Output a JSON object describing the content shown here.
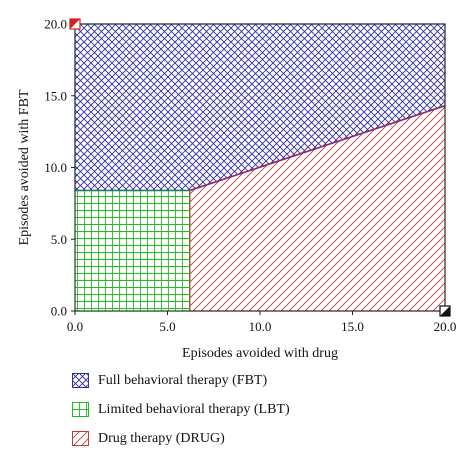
{
  "chart_data": {
    "type": "area",
    "title": "",
    "xlabel": "Episodes avoided with drug",
    "ylabel": "Episodes avoided with FBT",
    "xlim": [
      0,
      20
    ],
    "ylim": [
      0,
      20
    ],
    "x_ticks": [
      "0.0",
      "5.0",
      "10.0",
      "15.0",
      "20.0"
    ],
    "y_ticks": [
      "0.0",
      "5.0",
      "10.0",
      "15.0",
      "20.0"
    ],
    "grid": false,
    "legend_position": "bottom",
    "regions": [
      {
        "name": "Full behavioral therapy (FBT)",
        "pattern": "crosshatch",
        "color": "#2e2e9c",
        "polygon": [
          [
            0,
            8.4
          ],
          [
            6.2,
            8.4
          ],
          [
            20,
            14.3
          ],
          [
            20,
            20
          ],
          [
            0,
            20
          ]
        ]
      },
      {
        "name": "Limited behavioral therapy (LBT)",
        "pattern": "grid",
        "color": "#22bb22",
        "polygon": [
          [
            0,
            0
          ],
          [
            6.2,
            0
          ],
          [
            6.2,
            8.4
          ],
          [
            0,
            8.4
          ]
        ]
      },
      {
        "name": "Drug therapy (DRUG)",
        "pattern": "diagonal",
        "color": "#c23a3a",
        "polygon": [
          [
            6.2,
            0
          ],
          [
            20,
            0
          ],
          [
            20,
            14.3
          ],
          [
            6.2,
            8.4
          ]
        ]
      }
    ],
    "corner_markers": [
      {
        "name": "Drug therapy (DRUG)",
        "x": 0,
        "y": 20,
        "color": "#d62020"
      },
      {
        "name": "corner-marker",
        "x": 20,
        "y": 0,
        "color": "#111111"
      }
    ]
  }
}
